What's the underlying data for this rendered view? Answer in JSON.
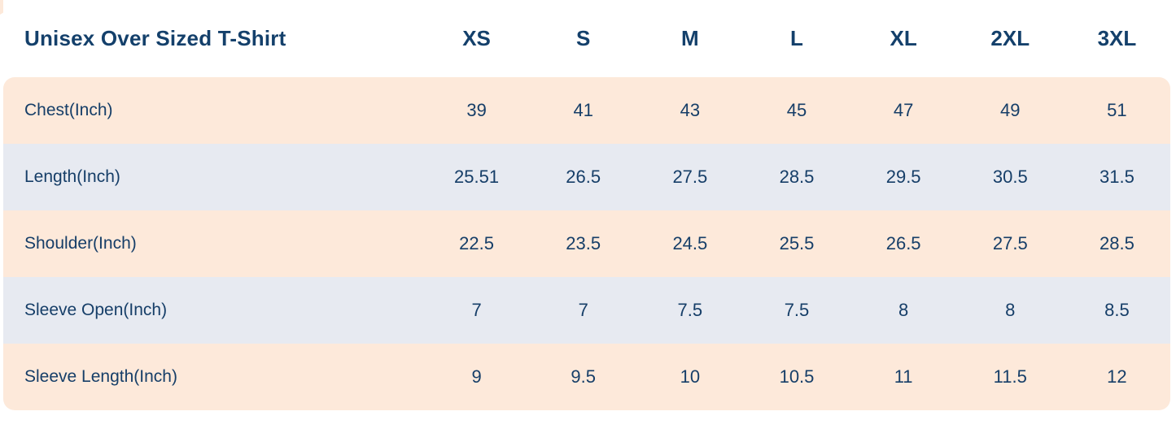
{
  "table": {
    "title": "Unisex Over Sized T-Shirt",
    "columns": [
      "XS",
      "S",
      "M",
      "L",
      "XL",
      "2XL",
      "3XL"
    ],
    "rows": [
      {
        "label": "Chest(Inch)",
        "values": [
          "39",
          "41",
          "43",
          "45",
          "47",
          "49",
          "51"
        ]
      },
      {
        "label": "Length(Inch)",
        "values": [
          "25.51",
          "26.5",
          "27.5",
          "28.5",
          "29.5",
          "30.5",
          "31.5"
        ]
      },
      {
        "label": "Shoulder(Inch)",
        "values": [
          "22.5",
          "23.5",
          "24.5",
          "25.5",
          "26.5",
          "27.5",
          "28.5"
        ]
      },
      {
        "label": "Sleeve Open(Inch)",
        "values": [
          "7",
          "7",
          "7.5",
          "7.5",
          "8",
          "8",
          "8.5"
        ]
      },
      {
        "label": "Sleeve Length(Inch)",
        "values": [
          "9",
          "9.5",
          "10",
          "10.5",
          "11",
          "11.5",
          "12"
        ]
      }
    ],
    "colors": {
      "row_peach": "#fde9da",
      "row_blue": "#e7eaf1",
      "text_navy": "#14406b",
      "background": "#ffffff"
    }
  }
}
